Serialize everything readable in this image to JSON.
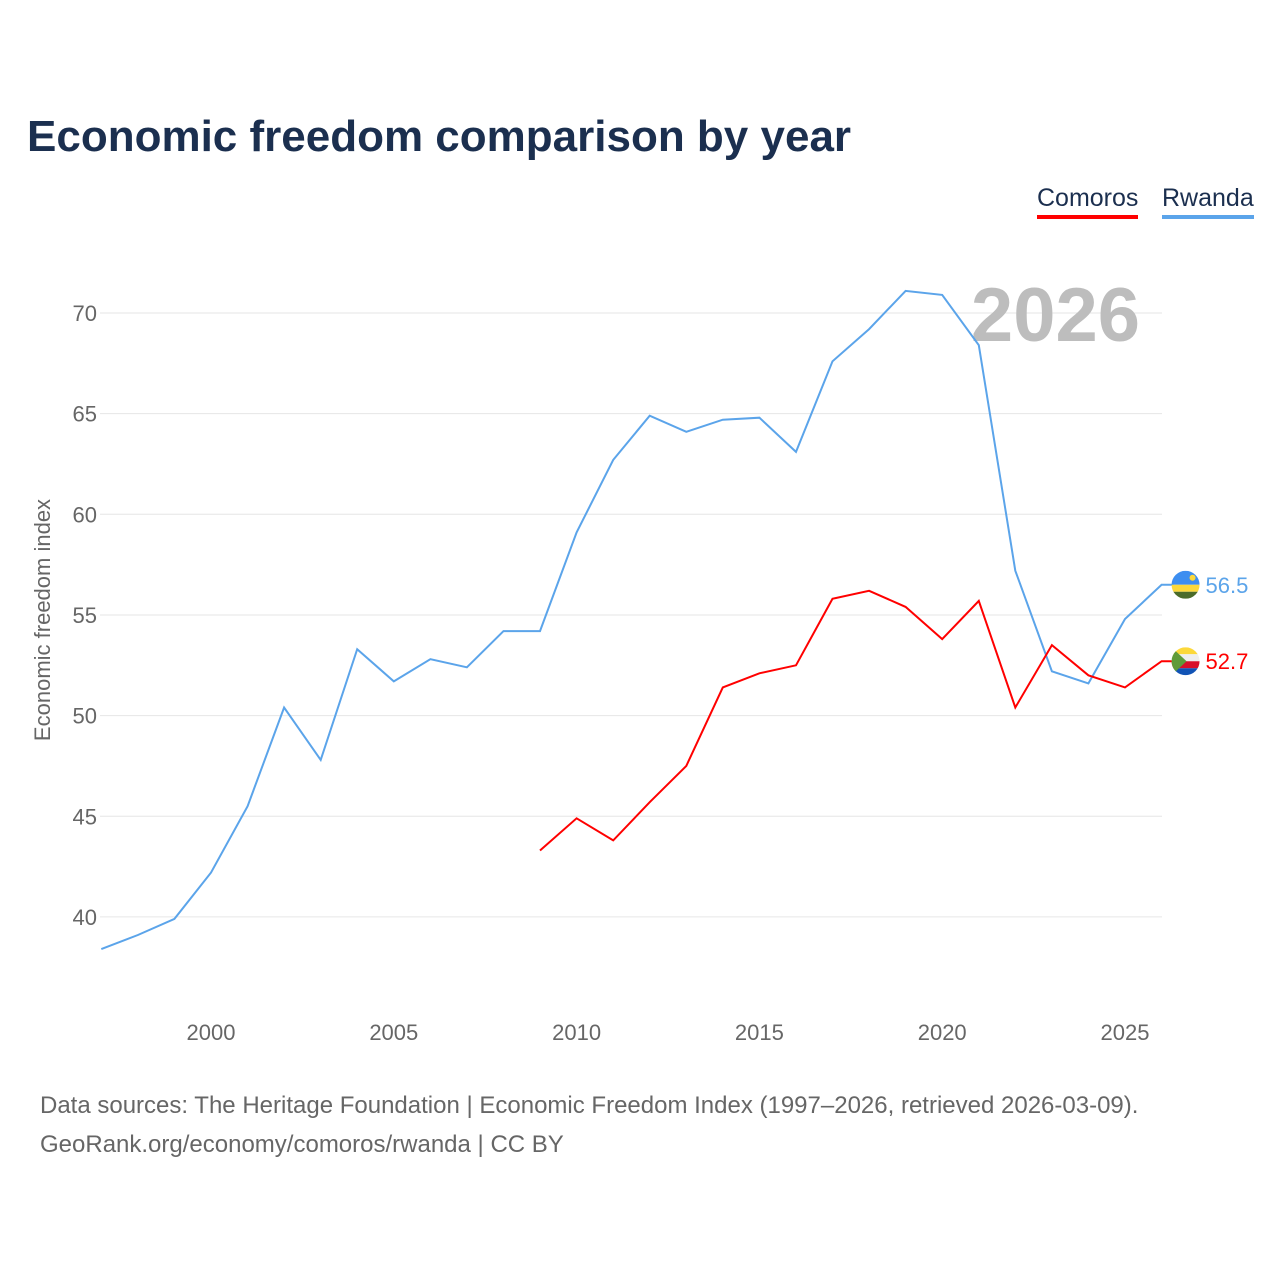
{
  "title": "Economic freedom comparison by year",
  "legend": [
    {
      "name": "Comoros",
      "color": "#ff0000"
    },
    {
      "name": "Rwanda",
      "color": "#5ba4ea"
    }
  ],
  "year_watermark": "2026",
  "source_line1": "Data sources: The Heritage Foundation | Economic Freedom Index (1997–2026, retrieved 2026-03-09).",
  "source_line2": "GeoRank.org/economy/comoros/rwanda | CC BY",
  "chart_data": {
    "type": "line",
    "title": "Economic freedom comparison by year",
    "xlabel": "",
    "ylabel": "Economic freedom index",
    "xlim": [
      1997,
      2026
    ],
    "ylim": [
      35.3,
      73
    ],
    "yticks": [
      40,
      45,
      50,
      55,
      60,
      65,
      70
    ],
    "xticks": [
      2000,
      2005,
      2010,
      2015,
      2020,
      2025
    ],
    "grid": true,
    "legend_position": "top-right",
    "series": [
      {
        "name": "Rwanda",
        "color": "#5ba4ea",
        "end_label": "56.5",
        "x": [
          1997,
          1998,
          1999,
          2000,
          2001,
          2002,
          2003,
          2004,
          2005,
          2006,
          2007,
          2008,
          2009,
          2010,
          2011,
          2012,
          2013,
          2014,
          2015,
          2016,
          2017,
          2018,
          2019,
          2020,
          2021,
          2022,
          2023,
          2024,
          2025,
          2026
        ],
        "values": [
          38.4,
          39.1,
          39.9,
          42.2,
          45.5,
          50.4,
          47.8,
          53.3,
          51.7,
          52.8,
          52.4,
          54.2,
          54.2,
          59.1,
          62.7,
          64.9,
          64.1,
          64.7,
          64.8,
          63.1,
          67.6,
          69.2,
          71.1,
          70.9,
          68.4,
          57.2,
          52.2,
          51.6,
          54.8,
          56.5
        ]
      },
      {
        "name": "Comoros",
        "color": "#ff0000",
        "end_label": "52.7",
        "x": [
          2009,
          2010,
          2011,
          2012,
          2013,
          2014,
          2015,
          2016,
          2017,
          2018,
          2019,
          2020,
          2021,
          2022,
          2023,
          2024,
          2025,
          2026
        ],
        "values": [
          43.3,
          44.9,
          43.8,
          45.7,
          47.5,
          51.4,
          52.1,
          52.5,
          55.8,
          56.2,
          55.4,
          53.8,
          55.7,
          50.4,
          53.5,
          52.0,
          51.4,
          52.7
        ]
      }
    ]
  }
}
